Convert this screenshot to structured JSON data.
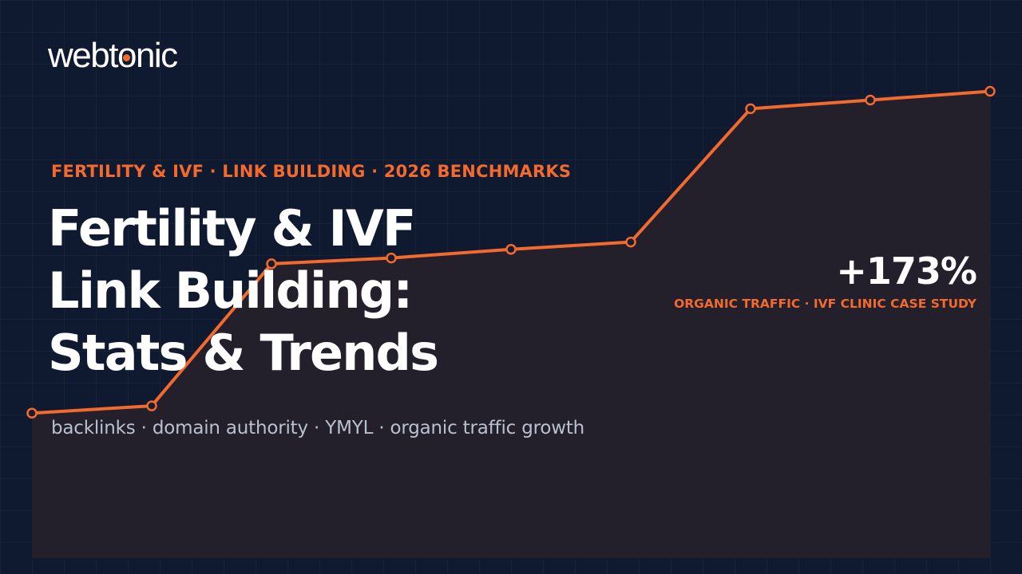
{
  "brand": {
    "logo_pre": "webt",
    "logo_o": "o",
    "logo_post": "nic"
  },
  "header": {
    "kicker": "FERTILITY & IVF · LINK BUILDING · 2026 BENCHMARKS",
    "title_lines": [
      "Fertility & IVF",
      "Link Building:",
      "Stats & Trends"
    ],
    "subtitle": "backlinks · domain authority · YMYL · organic traffic growth"
  },
  "stat": {
    "value": "+173%",
    "label": "ORGANIC TRAFFIC · IVF CLINIC CASE STUDY"
  },
  "chart_data": {
    "type": "area",
    "x": [
      1,
      2,
      3,
      4,
      5,
      6,
      7,
      8,
      9
    ],
    "values": [
      100,
      105,
      203,
      207,
      213,
      218,
      310,
      316,
      322
    ],
    "ylim": [
      0,
      385
    ],
    "grid": true,
    "colors": {
      "line": "#f26a2e",
      "fill": "#231f2b",
      "marker_fill": "#1a1c2c",
      "background": "#0f1a30",
      "accent": "#f26a2e"
    }
  }
}
